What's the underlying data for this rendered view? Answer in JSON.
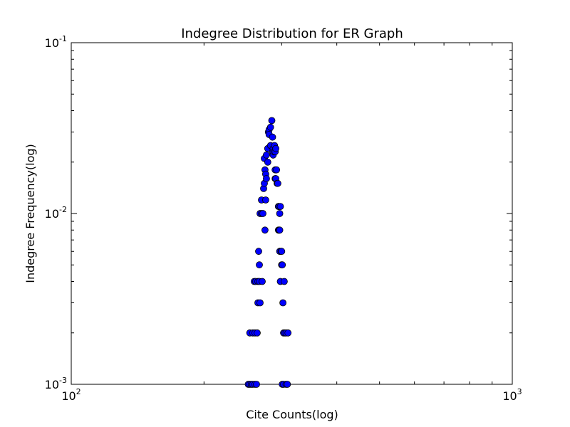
{
  "chart_data": {
    "type": "scatter",
    "title": "Indegree Distribution for ER Graph",
    "xlabel": "Cite Counts(log)",
    "ylabel": "Indegree Frequency(log)",
    "xscale": "log",
    "yscale": "log",
    "xlim": [
      100,
      1000
    ],
    "ylim": [
      0.001,
      0.1
    ],
    "grid": false,
    "marker_color": "#0000ff",
    "marker_edge_color": "#000000",
    "xticks": [
      {
        "value": 100,
        "base": "10",
        "exp": "2"
      },
      {
        "value": 1000,
        "base": "10",
        "exp": "3"
      }
    ],
    "yticks": [
      {
        "value": 0.001,
        "base": "10",
        "exp": "-3"
      },
      {
        "value": 0.01,
        "base": "10",
        "exp": "-2"
      },
      {
        "value": 0.1,
        "base": "10",
        "exp": "-1"
      }
    ],
    "points": [
      [
        252,
        0.001
      ],
      [
        254,
        0.001
      ],
      [
        256,
        0.001
      ],
      [
        258,
        0.001
      ],
      [
        261,
        0.001
      ],
      [
        263,
        0.001
      ],
      [
        254,
        0.002
      ],
      [
        258,
        0.002
      ],
      [
        261,
        0.002
      ],
      [
        264,
        0.002
      ],
      [
        260,
        0.004
      ],
      [
        262,
        0.004
      ],
      [
        265,
        0.004
      ],
      [
        267,
        0.004
      ],
      [
        271,
        0.004
      ],
      [
        265,
        0.003
      ],
      [
        268,
        0.003
      ],
      [
        266,
        0.006
      ],
      [
        267,
        0.005
      ],
      [
        268,
        0.01
      ],
      [
        270,
        0.01
      ],
      [
        272,
        0.01
      ],
      [
        270,
        0.012
      ],
      [
        275,
        0.008
      ],
      [
        276,
        0.012
      ],
      [
        273,
        0.014
      ],
      [
        274,
        0.015
      ],
      [
        275,
        0.018
      ],
      [
        274,
        0.021
      ],
      [
        276,
        0.017
      ],
      [
        277,
        0.016
      ],
      [
        277,
        0.022
      ],
      [
        279,
        0.024
      ],
      [
        279,
        0.02
      ],
      [
        280,
        0.03
      ],
      [
        281,
        0.031
      ],
      [
        281,
        0.029
      ],
      [
        283,
        0.032
      ],
      [
        283,
        0.025
      ],
      [
        285,
        0.035
      ],
      [
        286,
        0.028
      ],
      [
        286,
        0.023
      ],
      [
        287,
        0.022
      ],
      [
        287,
        0.024
      ],
      [
        288,
        0.023
      ],
      [
        289,
        0.025
      ],
      [
        290,
        0.023
      ],
      [
        291,
        0.024
      ],
      [
        290,
        0.018
      ],
      [
        290,
        0.016
      ],
      [
        291,
        0.016
      ],
      [
        292,
        0.018
      ],
      [
        293,
        0.015
      ],
      [
        294,
        0.015
      ],
      [
        295,
        0.011
      ],
      [
        296,
        0.011
      ],
      [
        298,
        0.011
      ],
      [
        297,
        0.01
      ],
      [
        295,
        0.008
      ],
      [
        296,
        0.008
      ],
      [
        297,
        0.008
      ],
      [
        297,
        0.006
      ],
      [
        299,
        0.006
      ],
      [
        300,
        0.006
      ],
      [
        298,
        0.004
      ],
      [
        300,
        0.005
      ],
      [
        301,
        0.005
      ],
      [
        302,
        0.003
      ],
      [
        304,
        0.004
      ],
      [
        303,
        0.002
      ],
      [
        305,
        0.002
      ],
      [
        307,
        0.002
      ],
      [
        310,
        0.002
      ],
      [
        301,
        0.001
      ],
      [
        303,
        0.001
      ],
      [
        307,
        0.001
      ],
      [
        309,
        0.001
      ]
    ]
  }
}
